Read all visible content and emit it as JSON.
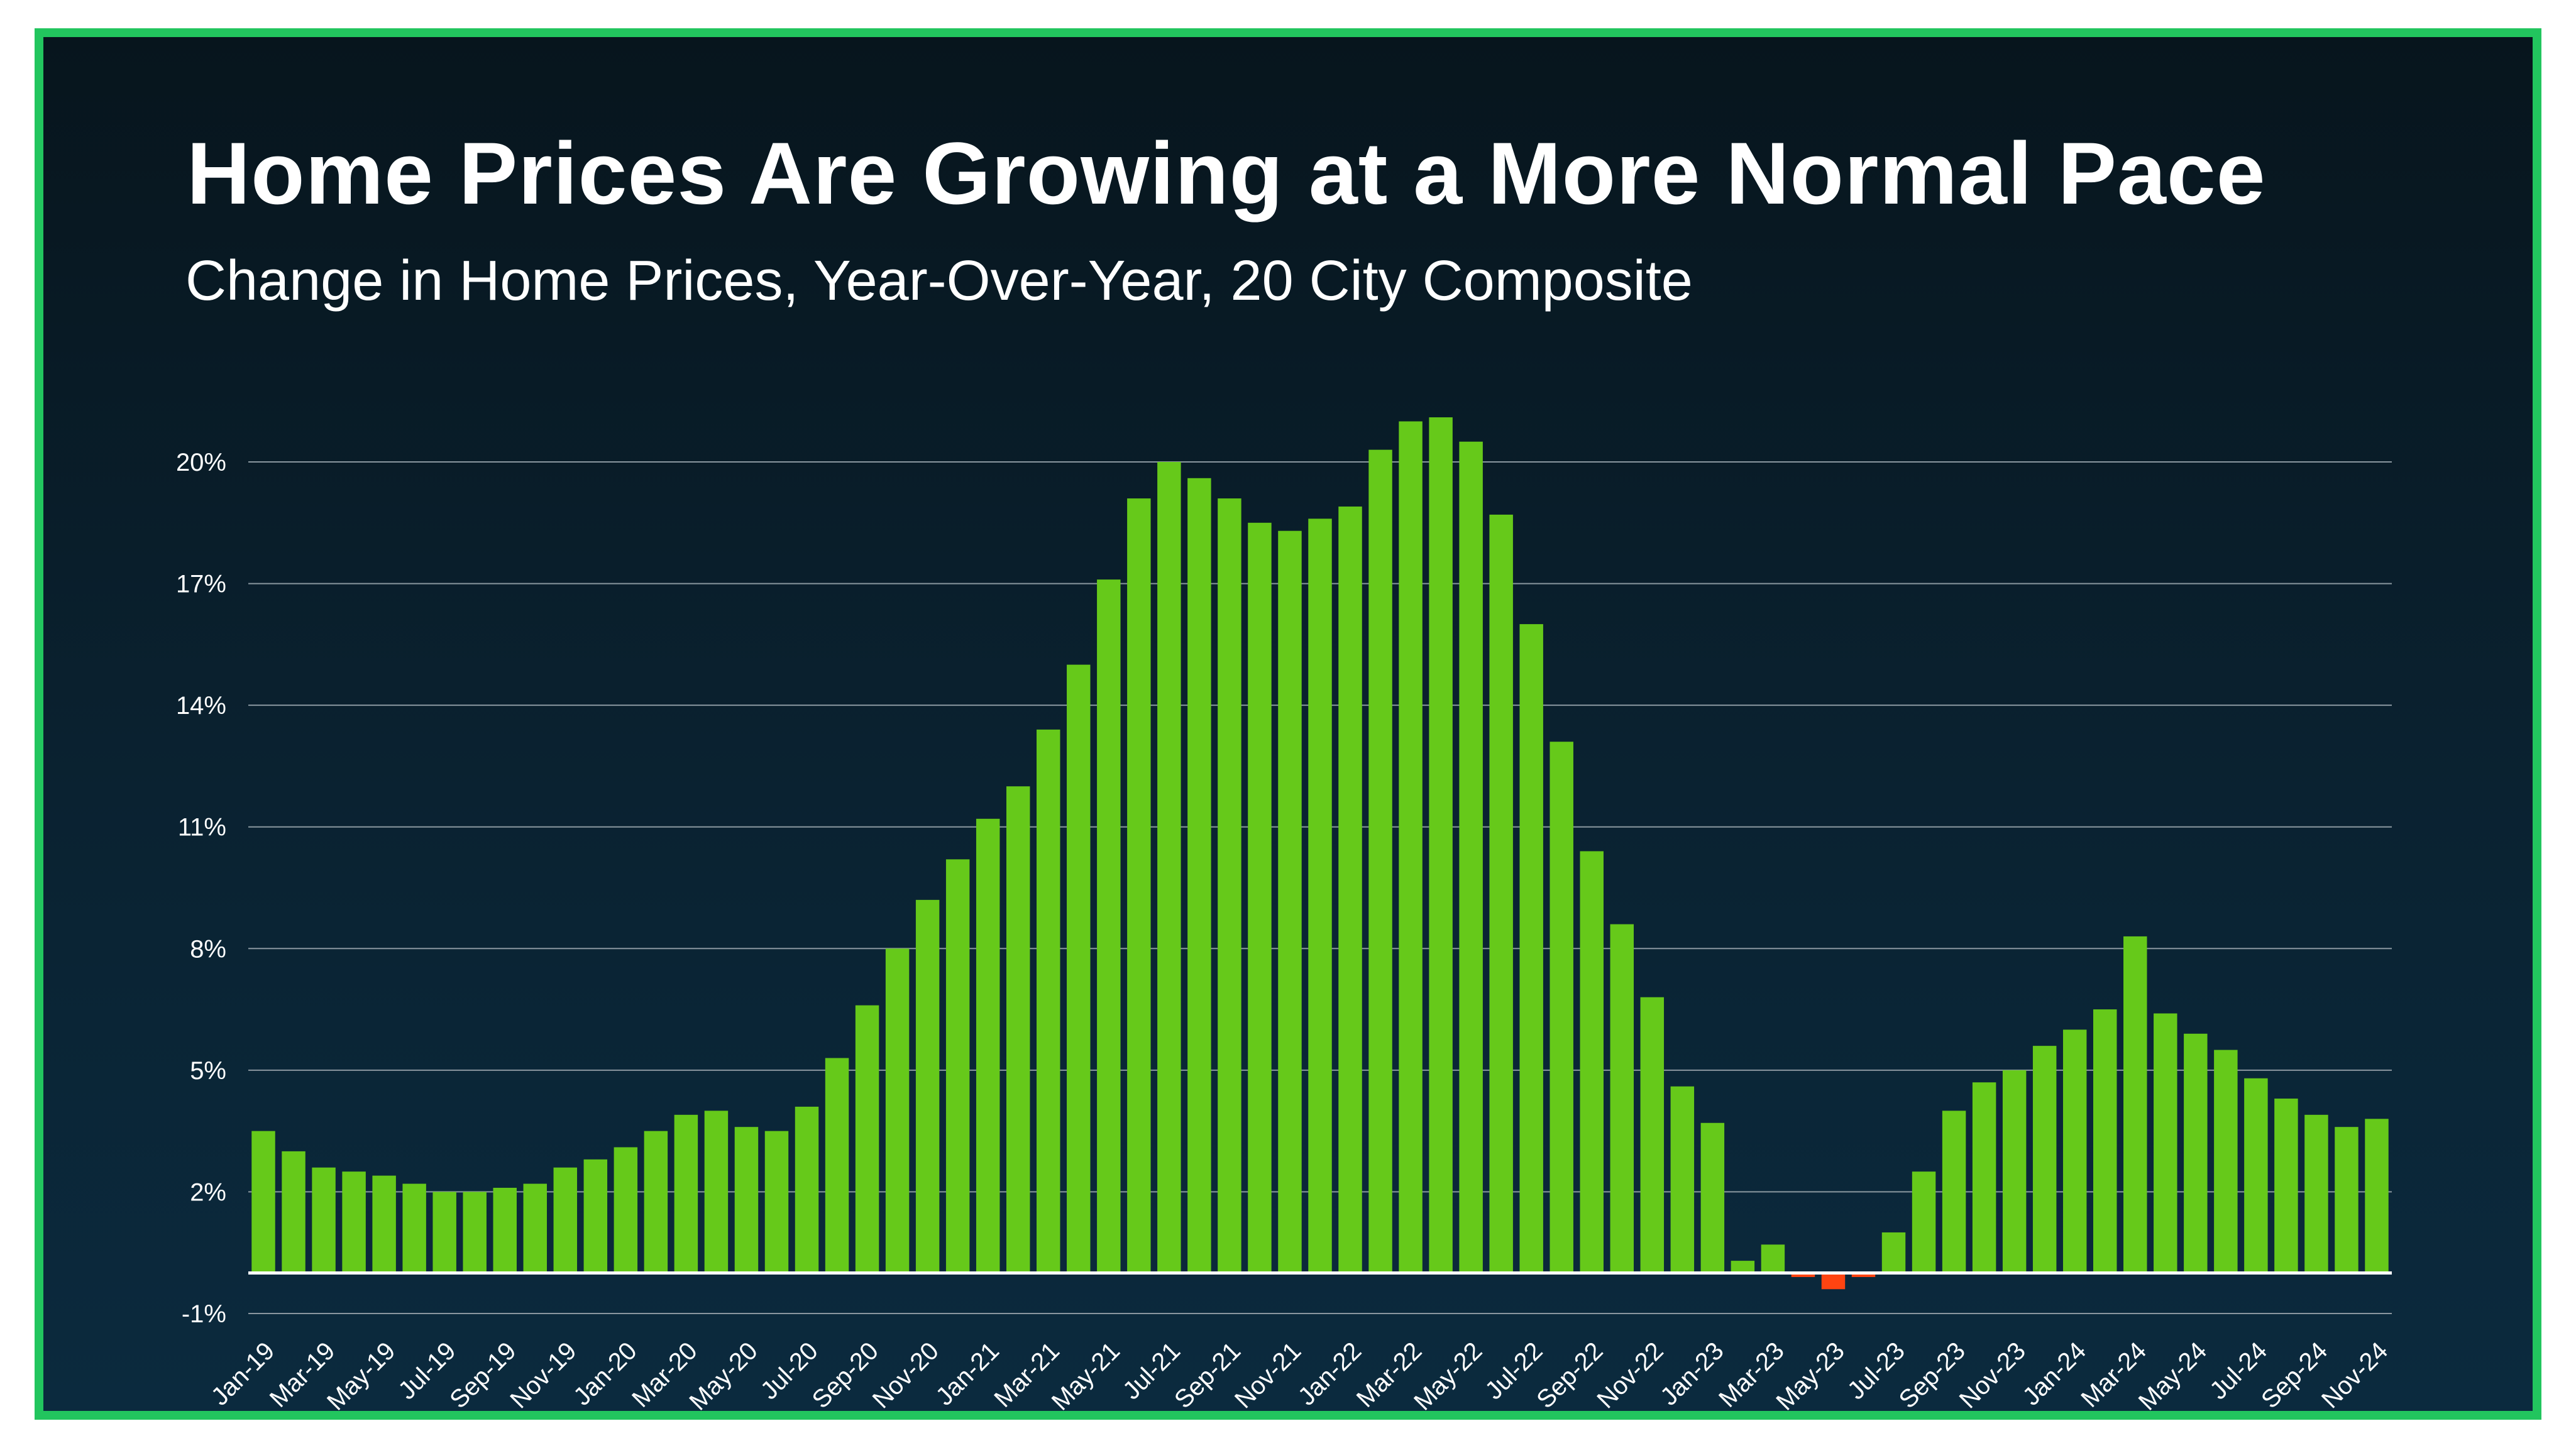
{
  "colors": {
    "border": "#22c55e",
    "positive_bar": "#66c91a",
    "negative_bar": "#ff4411",
    "grid": "#8a97a0",
    "baseline": "#ffffff"
  },
  "chart_data": {
    "type": "bar",
    "title": "Home Prices Are Growing at a More Normal Pace",
    "subtitle": "Change in Home Prices, Year-Over-Year, 20 City Composite",
    "xlabel": "",
    "ylabel": "",
    "y_tick_labels": [
      "-1%",
      "2%",
      "5%",
      "8%",
      "11%",
      "14%",
      "17%",
      "20%"
    ],
    "ylim": [
      -1,
      21.5
    ],
    "grid": true,
    "legend": "none",
    "categories": [
      "Jan-19",
      "Feb-19",
      "Mar-19",
      "Apr-19",
      "May-19",
      "Jun-19",
      "Jul-19",
      "Aug-19",
      "Sep-19",
      "Oct-19",
      "Nov-19",
      "Dec-19",
      "Jan-20",
      "Feb-20",
      "Mar-20",
      "Apr-20",
      "May-20",
      "Jun-20",
      "Jul-20",
      "Aug-20",
      "Sep-20",
      "Oct-20",
      "Nov-20",
      "Dec-20",
      "Jan-21",
      "Feb-21",
      "Mar-21",
      "Apr-21",
      "May-21",
      "Jun-21",
      "Jul-21",
      "Aug-21",
      "Sep-21",
      "Oct-21",
      "Nov-21",
      "Dec-21",
      "Jan-22",
      "Feb-22",
      "Mar-22",
      "Apr-22",
      "May-22",
      "Jun-22",
      "Jul-22",
      "Aug-22",
      "Sep-22",
      "Oct-22",
      "Nov-22",
      "Dec-22",
      "Jan-23",
      "Feb-23",
      "Mar-23",
      "Apr-23",
      "May-23",
      "Jun-23",
      "Jul-23",
      "Aug-23",
      "Sep-23",
      "Oct-23",
      "Nov-23",
      "Dec-23",
      "Jan-24",
      "Feb-24",
      "Mar-24",
      "Apr-24",
      "May-24",
      "Jun-24",
      "Jul-24",
      "Aug-24",
      "Sep-24",
      "Oct-24",
      "Nov-24"
    ],
    "x_tick_labels": [
      "Jan-19",
      "Mar-19",
      "May-19",
      "Jul-19",
      "Sep-19",
      "Nov-19",
      "Jan-20",
      "Mar-20",
      "May-20",
      "Jul-20",
      "Sep-20",
      "Nov-20",
      "Jan-21",
      "Mar-21",
      "May-21",
      "Jul-21",
      "Sep-21",
      "Nov-21",
      "Jan-22",
      "Mar-22",
      "May-22",
      "Jul-22",
      "Sep-22",
      "Nov-22",
      "Jan-23",
      "Mar-23",
      "May-23",
      "Jul-23",
      "Sep-23",
      "Nov-23",
      "Jan-24",
      "Mar-24",
      "May-24",
      "Jul-24",
      "Sep-24",
      "Nov-24"
    ],
    "values": [
      3.5,
      3.0,
      2.6,
      2.5,
      2.4,
      2.2,
      2.0,
      2.0,
      2.1,
      2.2,
      2.6,
      2.8,
      3.1,
      3.5,
      3.9,
      4.0,
      3.6,
      3.5,
      4.1,
      5.3,
      6.6,
      8.0,
      9.2,
      10.2,
      11.2,
      12.0,
      13.4,
      15.0,
      17.1,
      19.1,
      20.0,
      19.6,
      19.1,
      18.5,
      18.3,
      18.6,
      18.9,
      20.3,
      21.0,
      21.1,
      20.5,
      18.7,
      16.0,
      13.1,
      10.4,
      8.6,
      6.8,
      4.6,
      3.7,
      0.3,
      0.7,
      -0.1,
      -0.4,
      -0.1,
      1.0,
      2.5,
      4.0,
      4.7,
      5.0,
      5.6,
      6.0,
      6.5,
      8.3,
      6.4,
      5.9,
      5.5,
      4.8,
      4.3,
      3.9,
      3.6,
      3.8
    ]
  }
}
